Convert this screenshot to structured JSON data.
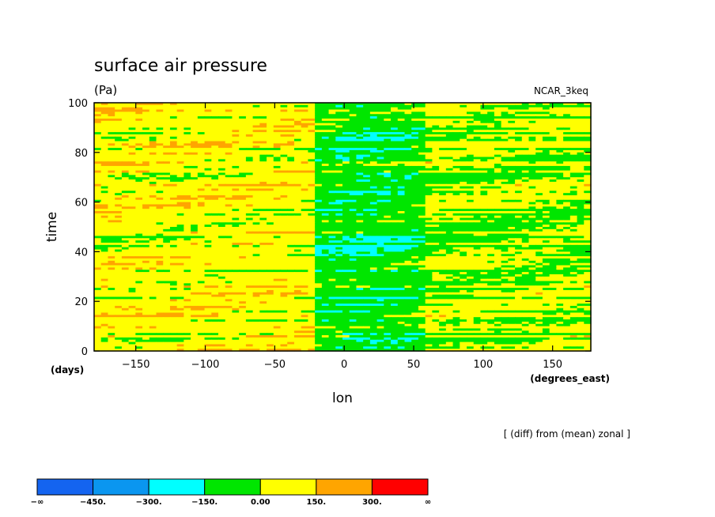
{
  "chart_data": {
    "type": "heatmap",
    "title": "surface air pressure",
    "units": "(Pa)",
    "source": "NCAR_3keq",
    "xlabel": "lon",
    "xunits": "(degrees_east)",
    "ylabel": "time",
    "yunits": "(days)",
    "xlim": [
      -180,
      177.5
    ],
    "ylim": [
      0,
      100
    ],
    "xticks": [
      -150,
      -100,
      -50,
      0,
      50,
      100,
      150
    ],
    "xtick_labels": [
      "−150",
      "−100",
      "−50",
      "0",
      "50",
      "100",
      "150"
    ],
    "yticks": [
      0,
      20,
      40,
      60,
      80,
      100
    ],
    "ytick_labels": [
      "0",
      "20",
      "40",
      "60",
      "80",
      "100"
    ],
    "note": "[ (diff) from (mean) zonal ]",
    "dominant_levels_by_longitude": [
      {
        "lon_range": [
          -180,
          -20
        ],
        "typical_level": "0 to 150",
        "notes": "mostly yellow with orange and green streaks"
      },
      {
        "lon_range": [
          -20,
          60
        ],
        "typical_level": "-150 to 0",
        "notes": "mostly green with cyan patches"
      },
      {
        "lon_range": [
          60,
          177.5
        ],
        "typical_level": "-150 to 150",
        "notes": "mixed green and yellow, sloping streaks"
      }
    ],
    "colorbar": {
      "colors": [
        "#1464f0",
        "#0a96f0",
        "#00ffff",
        "#00e600",
        "#ffff00",
        "#ffa500",
        "#ff0000"
      ],
      "boundaries": [
        -450,
        -300,
        -150,
        0,
        150,
        300
      ],
      "labels": [
        "−∞",
        "−450.",
        "−300.",
        "−150.",
        "0.00",
        "150.",
        "300.",
        "∞"
      ]
    }
  }
}
